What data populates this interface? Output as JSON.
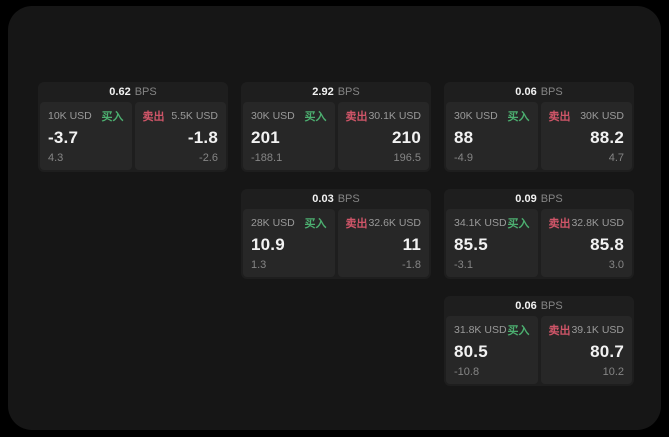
{
  "labels": {
    "bps_unit": "BPS",
    "buy": "买入",
    "sell": "卖出"
  },
  "colors": {
    "bg": "#000000",
    "frame": "#161616",
    "card": "#1e1e1e",
    "panel": "#272727",
    "buy_green": "#4caf70",
    "sell_red": "#cf5568",
    "text_bright": "#f2f2f2",
    "text_dim": "#9a9a9a",
    "text_faint": "#858585"
  },
  "cards": [
    {
      "bps": "0.62",
      "buy": {
        "amount": "10K USD",
        "price": "-3.7",
        "sub": "4.3"
      },
      "sell": {
        "amount": "5.5K USD",
        "price": "-1.8",
        "sub": "-2.6"
      }
    },
    {
      "bps": "2.92",
      "buy": {
        "amount": "30K USD",
        "price": "201",
        "sub": "-188.1"
      },
      "sell": {
        "amount": "30.1K USD",
        "price": "210",
        "sub": "196.5"
      }
    },
    {
      "bps": "0.06",
      "buy": {
        "amount": "30K USD",
        "price": "88",
        "sub": "-4.9"
      },
      "sell": {
        "amount": "30K USD",
        "price": "88.2",
        "sub": "4.7"
      }
    },
    {
      "bps": "0.03",
      "buy": {
        "amount": "28K USD",
        "price": "10.9",
        "sub": "1.3"
      },
      "sell": {
        "amount": "32.6K USD",
        "price": "11",
        "sub": "-1.8"
      }
    },
    {
      "bps": "0.09",
      "buy": {
        "amount": "34.1K USD",
        "price": "85.5",
        "sub": "-3.1"
      },
      "sell": {
        "amount": "32.8K USD",
        "price": "85.8",
        "sub": "3.0"
      }
    },
    {
      "bps": "0.06",
      "buy": {
        "amount": "31.8K USD",
        "price": "80.5",
        "sub": "-10.8"
      },
      "sell": {
        "amount": "39.1K USD",
        "price": "80.7",
        "sub": "10.2"
      }
    }
  ]
}
